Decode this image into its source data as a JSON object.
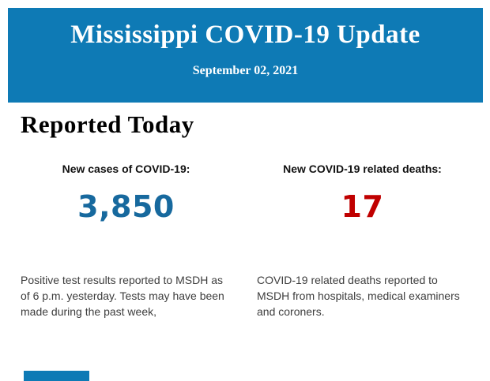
{
  "banner": {
    "title": "Mississippi COVID-19 Update",
    "date": "September 02, 2021",
    "bg_color": "#0e7ab5",
    "text_color": "#ffffff"
  },
  "section": {
    "heading": "Reported Today"
  },
  "stats": [
    {
      "label": "New cases of COVID-19:",
      "value": "3,850",
      "value_color": "#17699e",
      "description": "Positive test results reported to MSDH as of 6 p.m. yesterday. Tests may have been made during the past week,"
    },
    {
      "label": "New COVID-19 related deaths:",
      "value": "17",
      "value_color": "#c00000",
      "description": "COVID-19 related deaths reported to MSDH from hospitals, medical examiners and coroners."
    }
  ],
  "next_section_peek": {
    "color": "#0e7ab5"
  }
}
